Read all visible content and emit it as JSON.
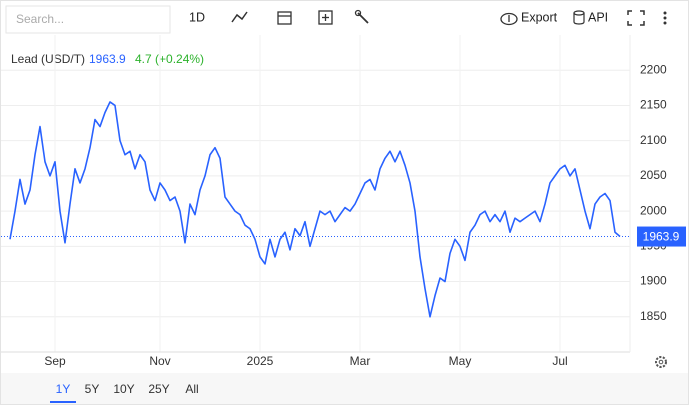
{
  "toolbar": {
    "search_placeholder": "Search...",
    "interval": "1D",
    "export": "Export",
    "api": "API"
  },
  "legend": {
    "change": "4.7 (+0.24%)"
  },
  "chart_data": {
    "type": "line",
    "categories": [
      null,
      null,
      null,
      null,
      null,
      null,
      null,
      null,
      null,
      "Sep",
      null,
      null,
      null,
      null,
      null,
      null,
      null,
      null,
      null,
      null,
      null,
      null,
      null,
      null,
      null,
      null,
      null,
      null,
      null,
      null,
      "Nov",
      null,
      null,
      null,
      null,
      null,
      null,
      null,
      null,
      null,
      null,
      null,
      null,
      null,
      null,
      null,
      null,
      null,
      null,
      null,
      "2025",
      null,
      null,
      null,
      null,
      null,
      null,
      null,
      null,
      null,
      null,
      null,
      null,
      null,
      null,
      null,
      null,
      null,
      null,
      null,
      "Mar",
      null,
      null,
      null,
      null,
      null,
      null,
      null,
      null,
      null,
      null,
      null,
      null,
      null,
      null,
      null,
      null,
      null,
      null,
      null,
      "May",
      null,
      null,
      null,
      null,
      null,
      null,
      null,
      null,
      null,
      null,
      null,
      null,
      null,
      null,
      null,
      null,
      null,
      null,
      null,
      "Jul",
      null,
      null,
      null,
      null,
      null,
      null,
      null,
      null,
      null,
      null,
      null,
      null
    ],
    "series": [
      {
        "name": "Lead (USD/T)",
        "color": "#2962ff",
        "values": [
          1960,
          2000,
          2045,
          2010,
          2030,
          2080,
          2120,
          2070,
          2050,
          2070,
          2000,
          1955,
          2010,
          2060,
          2040,
          2060,
          2090,
          2130,
          2120,
          2140,
          2155,
          2150,
          2100,
          2080,
          2085,
          2060,
          2080,
          2070,
          2030,
          2015,
          2040,
          2030,
          2015,
          2020,
          2000,
          1955,
          2010,
          1995,
          2030,
          2050,
          2080,
          2090,
          2075,
          2020,
          2010,
          2000,
          1995,
          1980,
          1975,
          1960,
          1935,
          1925,
          1960,
          1935,
          1960,
          1970,
          1945,
          1975,
          1965,
          1985,
          1950,
          1975,
          2000,
          1995,
          2000,
          1985,
          1995,
          2005,
          2000,
          2010,
          2025,
          2040,
          2045,
          2030,
          2060,
          2075,
          2085,
          2070,
          2085,
          2065,
          2040,
          2000,
          1935,
          1890,
          1850,
          1880,
          1905,
          1900,
          1940,
          1960,
          1950,
          1930,
          1970,
          1980,
          1995,
          2000,
          1985,
          1995,
          1985,
          2000,
          1970,
          1990,
          1985,
          1990,
          1995,
          2000,
          1985,
          2010,
          2040,
          2050,
          2060,
          2065,
          2050,
          2060,
          2030,
          2000,
          1975,
          2010,
          2020,
          2025,
          2015,
          1970,
          1963.9
        ]
      }
    ],
    "ylim": [
      1800,
      2250
    ],
    "yticks": [
      1850,
      1900,
      1950,
      2000,
      2050,
      2100,
      2150,
      2200
    ],
    "grid": true
  },
  "ranges": [
    "1Y",
    "5Y",
    "10Y",
    "25Y",
    "All"
  ]
}
